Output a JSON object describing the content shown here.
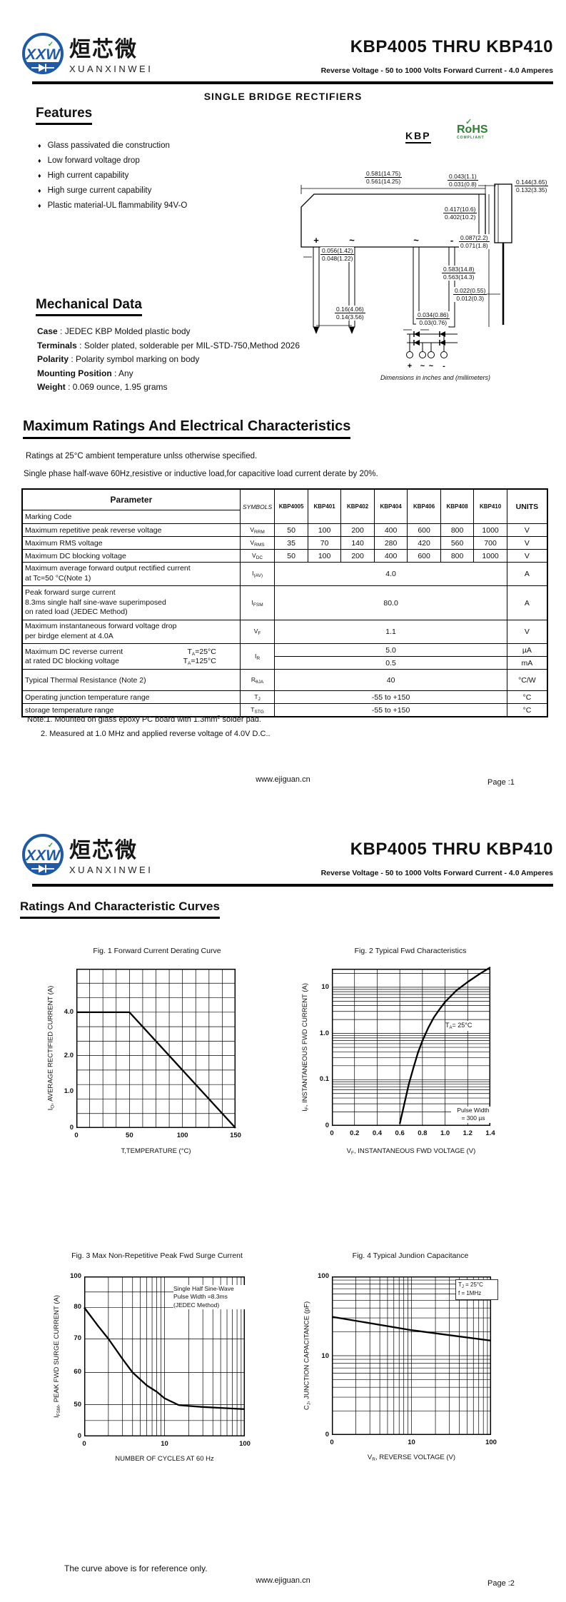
{
  "header": {
    "logo_mark": "XXW",
    "logo_check": "✓",
    "logo_cn": "烜芯微",
    "logo_en": "XUANXINWEI",
    "title": "KBP4005 THRU KBP410",
    "subtitle": "Reverse Voltage - 50 to 1000 Volts Forward Current - 4.0 Amperes"
  },
  "page1": {
    "product_type": "SINGLE  BRIDGE RECTIFIERS",
    "features": {
      "heading": "Features",
      "bullet": "♦",
      "items": [
        "Glass passivated die construction",
        "Low forward voltage drop",
        "High current capability",
        "High surge current capability",
        "Plastic material-UL flammability 94V-O"
      ]
    },
    "package": {
      "label": "KBP",
      "rohs_name": "RoHS",
      "rohs_tagline": "COMPLIANT",
      "pins": [
        "+",
        "~",
        "~",
        "-"
      ],
      "bridge_pins": [
        "+",
        "~",
        "~",
        "-"
      ],
      "caption": "Dimensions in inches and (millimeters)",
      "dims": {
        "body_w_t": "0.581(14.75)",
        "body_w_b": "0.561(14.25)",
        "side_tab_t": "0.043(1.1)",
        "side_tab_b": "0.031(0.8)",
        "side_w_t": "0.144(3.65)",
        "side_w_b": "0.132(3.35)",
        "body_h_t": "0.417(10.6)",
        "body_h_b": "0.402(10.2)",
        "shoulder_t": "0.087(2.2)",
        "shoulder_b": "0.071(1.8)",
        "lead_w_t": "0.056(1.42)",
        "lead_w_b": "0.048(1.22)",
        "lead_l_t": "0.583(14.8)",
        "lead_l_b": "0.563(14.3)",
        "side_lead_t": "0.022(0.55)",
        "side_lead_b": "0.012(0.3)",
        "pitch_t": "0.16(4.06)",
        "pitch_b": "0.14(3.56)",
        "lead_t_t": "0.034(0.86)",
        "lead_t_b": "0.03(0.76)"
      }
    },
    "mechanical": {
      "heading": "Mechanical Data",
      "rows": [
        {
          "label": "Case",
          "value": " : JEDEC KBP Molded plastic body"
        },
        {
          "label": "Terminals",
          "value": " : Solder plated, solderable per MIL-STD-750,Method 2026"
        },
        {
          "label": "Polarity",
          "value": " : Polarity symbol  marking on body"
        },
        {
          "label": "Mounting Position",
          "value": " : Any"
        },
        {
          "label": "Weight",
          "value": " : 0.069 ounce, 1.95 grams"
        }
      ]
    },
    "ratings": {
      "heading": "Maximum Ratings And Electrical Characteristics",
      "cond1": "Ratings at 25°C ambient temperature unlss otherwise specified.",
      "cond2": "Single phase half-wave 60Hz,resistive or inductive load,for capacitive load current derate by 20%.",
      "footnote1_a": "Note:1. Mounted on  glass epoxy  PC board with 1.3mm",
      "footnote1_sup": "2",
      "footnote1_b": " solder pad.",
      "footnote2": "2. Measured at 1.0 MHz and applied reverse voltage of 4.0V D.C.."
    },
    "table": {
      "headers": {
        "parameter": "Parameter",
        "symbols": "SYMBOLS",
        "parts": [
          "KBP4005",
          "KBP401",
          "KBP402",
          "KBP404",
          "KBP406",
          "KBP408",
          "KBP410"
        ],
        "units": "UNITS",
        "marking_code": "Marking Code"
      },
      "vrrm": {
        "param": "Maximum repetitive peak reverse voltage",
        "sym_base": "V",
        "sym_sub": "RRM",
        "vals": [
          "50",
          "100",
          "200",
          "400",
          "600",
          "800",
          "1000"
        ],
        "unit": "V"
      },
      "vrms": {
        "param": "Maximum RMS voltage",
        "sym_base": "V",
        "sym_sub": "RMS",
        "vals": [
          "35",
          "70",
          "140",
          "280",
          "420",
          "560",
          "700"
        ],
        "unit": "V"
      },
      "vdc": {
        "param": "Maximum DC blocking voltage",
        "sym_base": "V",
        "sym_sub": "DC",
        "vals": [
          "50",
          "100",
          "200",
          "400",
          "600",
          "800",
          "1000"
        ],
        "unit": "V"
      },
      "iav": {
        "param": "Maximum average forward output rectified current\nat Tc=50 °C(Note 1)",
        "sym_base": "I",
        "sym_sub": "(AV)",
        "value": "4.0",
        "unit": "A"
      },
      "ifsm": {
        "param": "Peak forward surge current\n8.3ms single half sine-wave superimposed\non rated load (JEDEC Method)",
        "sym_base": "I",
        "sym_sub": "FSM",
        "value": "80.0",
        "unit": "A"
      },
      "vf": {
        "param": "Maximum instantaneous forward voltage drop\nper birdge element at 4.0A",
        "sym_base": "V",
        "sym_sub": "F",
        "value": "1.1",
        "unit": "V"
      },
      "ir": {
        "param_line1": "Maximum DC reverse current",
        "cond1_base": "T",
        "cond1_sub": "A",
        "cond1_rest": "=25°C",
        "param_line2": "at rated DC blocking voltage",
        "cond2_base": "T",
        "cond2_sub": "A",
        "cond2_rest": "=125°C",
        "sym_base": "I",
        "sym_sub": "R",
        "val1": "5.0",
        "unit1": "µA",
        "val2": "0.5",
        "unit2": "mA"
      },
      "rthja": {
        "param": "Typical Thermal Resistance (Note 2)",
        "sym_base": "R",
        "sym_sub": "θJA",
        "value": "40",
        "unit": "°C/W"
      },
      "tj": {
        "param": "Operating junction temperature range",
        "sym_base": "T",
        "sym_sub": "J",
        "value": "-55 to +150",
        "unit": "°C"
      },
      "tstg": {
        "param": "storage temperature range",
        "sym_base": "T",
        "sym_sub": "STG",
        "value": "-55 to +150",
        "unit": "°C"
      }
    },
    "footer": {
      "site": "www.ejiguan.cn",
      "page": "Page :1"
    }
  },
  "page2": {
    "heading": "Ratings And Characteristic Curves",
    "reference_note": "The curve above is for reference only.",
    "footer": {
      "site": "www.ejiguan.cn",
      "page": "Page :2"
    }
  },
  "chart_data": [
    {
      "type": "line",
      "title": "Fig. 1 Forward Current Derating Curve",
      "xlabel": "T,TEMPERATURE (°C)",
      "ylabel": "IO, AVERAGE RECTIFIED CURRENT (A)",
      "ylabel_base": "I",
      "ylabel_sub": "O",
      "ylabel_rest": ", AVERAGE RECTIFIED CURRENT (A)",
      "xticks": [
        "0",
        "50",
        "100",
        "150"
      ],
      "yticks": [
        "4.0",
        "2.0",
        "1.0",
        "0"
      ],
      "xlim": [
        0,
        150
      ],
      "ylim": [
        0,
        5.5
      ],
      "grid": true,
      "legend": "none",
      "series": [
        {
          "name": "average rectified current vs temperature",
          "points": [
            [
              0,
              4.0
            ],
            [
              50,
              4.0
            ],
            [
              150,
              0
            ]
          ]
        }
      ]
    },
    {
      "type": "line",
      "title": "Fig. 2  Typical Fwd Characteristics",
      "xlabel": "VF, INSTANTANEOUS FWD VOLTAGE (V)",
      "xlabel_base": "V",
      "xlabel_sub": "F",
      "xlabel_rest": ", INSTANTANEOUS FWD VOLTAGE (V)",
      "ylabel": "IF, INSTANTANEOUS FWD CURRENT (A)",
      "ylabel_base": "I",
      "ylabel_sub": "F",
      "ylabel_rest": ", INSTANTANEOUS FWD CURRENT (A)",
      "xticks": [
        "0",
        "0.2",
        "0.4",
        "0.6",
        "0.8",
        "1.0",
        "1.2",
        "1.4"
      ],
      "yticks": [
        "10",
        "1.0",
        "0.1",
        "0"
      ],
      "xlim": [
        0,
        1.4
      ],
      "yscale": "log",
      "grid": true,
      "ann_ta_base": "T",
      "ann_ta_sub": "A",
      "ann_ta_rest": "=  25°C",
      "ann_pw_line1": "Pulse Width",
      "ann_pw_line2": "=  300 µs",
      "series": [
        {
          "name": "typical forward characteristic",
          "points": [
            [
              0.6,
              0.011
            ],
            [
              0.64,
              0.03
            ],
            [
              0.68,
              0.08
            ],
            [
              0.72,
              0.18
            ],
            [
              0.76,
              0.38
            ],
            [
              0.8,
              0.7
            ],
            [
              0.85,
              1.3
            ],
            [
              0.9,
              2.2
            ],
            [
              0.95,
              3.3
            ],
            [
              1.0,
              4.8
            ],
            [
              1.1,
              8.5
            ],
            [
              1.2,
              13
            ],
            [
              1.3,
              19
            ],
            [
              1.4,
              27
            ]
          ]
        }
      ]
    },
    {
      "type": "line",
      "title": "Fig. 3  Max Non-Repetitive Peak Fwd Surge Current",
      "xlabel": "NUMBER OF CYCLES AT 60 Hz",
      "ylabel": "IFSM,  PEAK FWD SURGE CURRENT (A)",
      "ylabel_base": "I",
      "ylabel_sub": "FSM",
      "ylabel_rest": ",  PEAK FWD SURGE CURRENT (A)",
      "xticks": [
        "0",
        "10",
        "100"
      ],
      "yticks": [
        "100",
        "80",
        "70",
        "60",
        "50",
        "0"
      ],
      "xscale": "log",
      "grid": true,
      "ann_line1": "Single Half Sine-Wave",
      "ann_line2": "Pulse Width =8.3ms",
      "ann_line3": "(JEDEC Method)",
      "series": [
        {
          "name": "peak forward surge current vs cycles",
          "points": [
            [
              1,
              80
            ],
            [
              1.5,
              74
            ],
            [
              2,
              70
            ],
            [
              3,
              64
            ],
            [
              4,
              60
            ],
            [
              6,
              56
            ],
            [
              8,
              54
            ],
            [
              10,
              52
            ],
            [
              15,
              49.5
            ],
            [
              20,
              48
            ],
            [
              30,
              46.5
            ],
            [
              50,
              45
            ],
            [
              70,
              44
            ],
            [
              100,
              43
            ]
          ]
        }
      ]
    },
    {
      "type": "line",
      "title": "Fig. 4  Typical Jundion Capacitance",
      "xlabel": "VR, REVERSE VOLTAGE (V)",
      "xlabel_base": "V",
      "xlabel_sub": "R",
      "xlabel_rest": ", REVERSE VOLTAGE (V)",
      "ylabel": "CJ, JUNCTION CAPACITANCE (pF)",
      "ylabel_base": "C",
      "ylabel_sub": "J",
      "ylabel_rest": ", JUNCTION CAPACITANCE (pF)",
      "xticks": [
        "0",
        "10",
        "100"
      ],
      "yticks": [
        "100",
        "10",
        "0"
      ],
      "xscale": "log",
      "yscale": "log",
      "grid": true,
      "ann1_base": "T",
      "ann1_sub": "J",
      "ann1_rest": " = 25°C",
      "ann2": "f =  1MHz",
      "series": [
        {
          "name": "junction capacitance vs reverse voltage",
          "points": [
            [
              1,
              31
            ],
            [
              10,
              21
            ],
            [
              100,
              15.5
            ]
          ]
        }
      ]
    }
  ]
}
